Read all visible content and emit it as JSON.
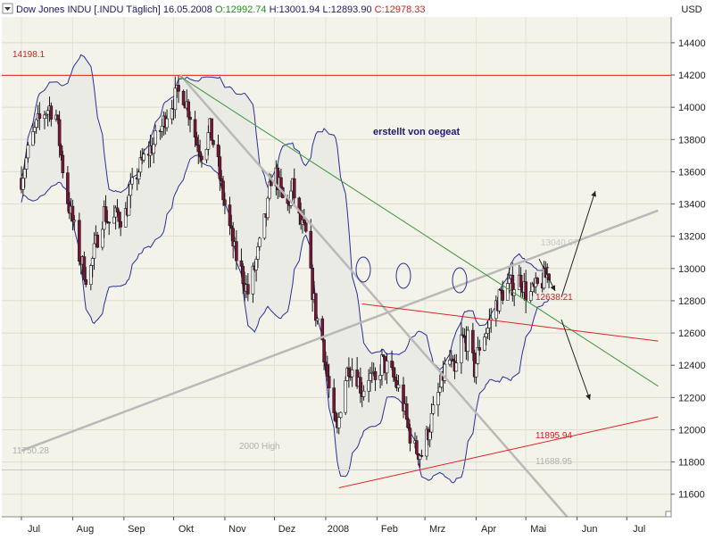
{
  "header": {
    "symbol": "Dow Jones INDU [.INDU  Täglich]",
    "date": "16.05.2008",
    "o_label": "O:",
    "o_value": "12992.74",
    "h_label": "H:",
    "h_value": "13001.94",
    "l_label": "L:",
    "l_value": "12893.90",
    "c_label": "C:",
    "c_value": "12978.33",
    "currency": "USD"
  },
  "annotations": {
    "author": "erstellt von oegeat",
    "resistance_label": "14198.1",
    "support_1_label": "11750.28",
    "support_2_label": "11688.95",
    "high2000_label": "2000 High",
    "target_low_label": "11895.94",
    "cross_label": "12638.21",
    "last_label": "13040.07"
  },
  "colors": {
    "background": "#f3f3e9",
    "band_fill": "#e9ebe4",
    "band_line": "#2b2f9a",
    "candle_up": "#ffffff",
    "candle_down": "#7a1537",
    "wick": "#1a1a1a",
    "resistance": "#e02222",
    "downtrend_green": "#3c9a3c",
    "grey_trend": "#b9b9b9",
    "support_grey": "#c8c8c8",
    "red_channel": "#e02222",
    "arrow": "#222222"
  },
  "chart_data": {
    "type": "candlestick",
    "title": "Dow Jones INDU [.INDU Täglich]",
    "ylabel": "USD",
    "y_range": [
      11460,
      14560
    ],
    "y_ticks": [
      11600,
      11800,
      12000,
      12200,
      12400,
      12600,
      12800,
      13000,
      13200,
      13400,
      13600,
      13800,
      14000,
      14200,
      14400
    ],
    "x_labels": [
      "Jul",
      "Aug",
      "Sep",
      "Okt",
      "Nov",
      "Dez",
      "2008",
      "Feb",
      "Mrz",
      "Apr",
      "Mai",
      "Jun",
      "Jul"
    ],
    "x_label_days": [
      0,
      31,
      62,
      92,
      123,
      153,
      184,
      215,
      244,
      275,
      305,
      336,
      366
    ],
    "first_day": 0,
    "last_day": 320,
    "horizontal_levels": [
      {
        "value": 14198.1,
        "label": "14198.1",
        "style": "resistance"
      },
      {
        "value": 11750.28,
        "label": "11750.28",
        "style": "support"
      }
    ],
    "trend_lines": [
      {
        "name": "grey-uptrend",
        "from": [
          0,
          11870
        ],
        "to": [
          385,
          13360
        ],
        "style": "grey_trend"
      },
      {
        "name": "grey-downtrend",
        "from": [
          96,
          14200
        ],
        "to": [
          330,
          11460
        ],
        "style": "grey_trend"
      },
      {
        "name": "green-downtrend",
        "from": [
          96,
          14190
        ],
        "to": [
          385,
          12270
        ],
        "style": "downtrend_green"
      },
      {
        "name": "red-upper-channel",
        "from": [
          206,
          12780
        ],
        "to": [
          385,
          12550
        ],
        "style": "red_channel"
      },
      {
        "name": "red-lower-channel",
        "from": [
          192,
          11640
        ],
        "to": [
          385,
          12080
        ],
        "style": "red_channel"
      }
    ],
    "anchors": [
      {
        "day": 0,
        "price": 13560
      },
      {
        "day": 5,
        "price": 13760
      },
      {
        "day": 9,
        "price": 13880
      },
      {
        "day": 13,
        "price": 13960
      },
      {
        "day": 17,
        "price": 14000
      },
      {
        "day": 21,
        "price": 13950
      },
      {
        "day": 24,
        "price": 13700
      },
      {
        "day": 27,
        "price": 13470
      },
      {
        "day": 31,
        "price": 13290
      },
      {
        "day": 35,
        "price": 13080
      },
      {
        "day": 39,
        "price": 12960
      },
      {
        "day": 42,
        "price": 13000
      },
      {
        "day": 46,
        "price": 13200
      },
      {
        "day": 50,
        "price": 13350
      },
      {
        "day": 54,
        "price": 13260
      },
      {
        "day": 58,
        "price": 13340
      },
      {
        "day": 62,
        "price": 13300
      },
      {
        "day": 66,
        "price": 13470
      },
      {
        "day": 70,
        "price": 13590
      },
      {
        "day": 75,
        "price": 13700
      },
      {
        "day": 80,
        "price": 13770
      },
      {
        "day": 85,
        "price": 13880
      },
      {
        "day": 89,
        "price": 14000
      },
      {
        "day": 93,
        "price": 14060
      },
      {
        "day": 97,
        "price": 14110
      },
      {
        "day": 102,
        "price": 13960
      },
      {
        "day": 106,
        "price": 13780
      },
      {
        "day": 110,
        "price": 13710
      },
      {
        "day": 114,
        "price": 13860
      },
      {
        "day": 118,
        "price": 13700
      },
      {
        "day": 121,
        "price": 13500
      },
      {
        "day": 125,
        "price": 13290
      },
      {
        "day": 129,
        "price": 13100
      },
      {
        "day": 133,
        "price": 12980
      },
      {
        "day": 137,
        "price": 12850
      },
      {
        "day": 141,
        "price": 13000
      },
      {
        "day": 145,
        "price": 13180
      },
      {
        "day": 149,
        "price": 13380
      },
      {
        "day": 152,
        "price": 13660
      },
      {
        "day": 156,
        "price": 13500
      },
      {
        "day": 160,
        "price": 13350
      },
      {
        "day": 164,
        "price": 13500
      },
      {
        "day": 168,
        "price": 13300
      },
      {
        "day": 172,
        "price": 13200
      },
      {
        "day": 175,
        "price": 12940
      },
      {
        "day": 178,
        "price": 12720
      },
      {
        "day": 182,
        "price": 12560
      },
      {
        "day": 185,
        "price": 12330
      },
      {
        "day": 188,
        "price": 12070
      },
      {
        "day": 191,
        "price": 11980
      },
      {
        "day": 194,
        "price": 12250
      },
      {
        "day": 198,
        "price": 12400
      },
      {
        "day": 202,
        "price": 12370
      },
      {
        "day": 206,
        "price": 12240
      },
      {
        "day": 210,
        "price": 12340
      },
      {
        "day": 214,
        "price": 12280
      },
      {
        "day": 218,
        "price": 12420
      },
      {
        "day": 222,
        "price": 12370
      },
      {
        "day": 226,
        "price": 12300
      },
      {
        "day": 230,
        "price": 12200
      },
      {
        "day": 234,
        "price": 12000
      },
      {
        "day": 238,
        "price": 11880
      },
      {
        "day": 242,
        "price": 11850
      },
      {
        "day": 246,
        "price": 11990
      },
      {
        "day": 250,
        "price": 12140
      },
      {
        "day": 254,
        "price": 12290
      },
      {
        "day": 258,
        "price": 12460
      },
      {
        "day": 262,
        "price": 12330
      },
      {
        "day": 266,
        "price": 12560
      },
      {
        "day": 270,
        "price": 12550
      },
      {
        "day": 274,
        "price": 12370
      },
      {
        "day": 278,
        "price": 12570
      },
      {
        "day": 282,
        "price": 12630
      },
      {
        "day": 286,
        "price": 12760
      },
      {
        "day": 290,
        "price": 12840
      },
      {
        "day": 294,
        "price": 12890
      },
      {
        "day": 298,
        "price": 12900
      },
      {
        "day": 302,
        "price": 12940
      },
      {
        "day": 306,
        "price": 12820
      },
      {
        "day": 310,
        "price": 12860
      },
      {
        "day": 314,
        "price": 12910
      },
      {
        "day": 318,
        "price": 12960
      },
      {
        "day": 320,
        "price": 12978
      }
    ],
    "volatility": 100,
    "bollinger_period": 20,
    "bollinger_k": 2
  }
}
